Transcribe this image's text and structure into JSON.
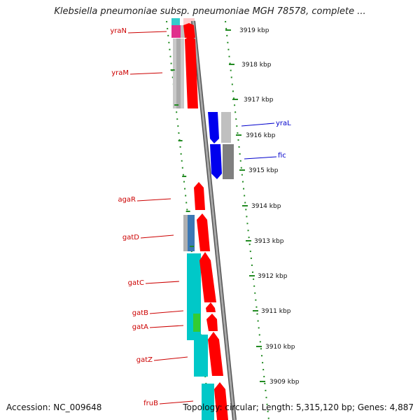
{
  "title": "Klebsiella pneumoniae subsp. pneumoniae MGH 78578, complete ...",
  "footer": {
    "accession": "Accession: NC_009648",
    "summary": "Topology: circular; Length: 5,315,120 bp; Genes: 4,887"
  },
  "colors": {
    "cds": "#ff0000",
    "cds_reverse": "#0000ff",
    "label_forward": "#cc0000",
    "label_reverse": "#0000cc",
    "tick": "#228b22",
    "backbone": "#8c8c8c"
  },
  "scale": {
    "unit": "kbp",
    "ticks": [
      {
        "label": "3919 kbp"
      },
      {
        "label": "3918 kbp"
      },
      {
        "label": "3917 kbp"
      },
      {
        "label": "3916 kbp"
      },
      {
        "label": "3915 kbp"
      },
      {
        "label": "3914 kbp"
      },
      {
        "label": "3913 kbp"
      },
      {
        "label": "3912 kbp"
      },
      {
        "label": "3911 kbp"
      },
      {
        "label": "3910 kbp"
      },
      {
        "label": "3909 kbp"
      }
    ]
  },
  "genes": [
    {
      "name": "yraN",
      "strand": "forward"
    },
    {
      "name": "yraM",
      "strand": "forward"
    },
    {
      "name": "yraL",
      "strand": "reverse"
    },
    {
      "name": "fic",
      "strand": "reverse"
    },
    {
      "name": "agaR",
      "strand": "forward"
    },
    {
      "name": "gatD",
      "strand": "forward"
    },
    {
      "name": "gatC",
      "strand": "forward"
    },
    {
      "name": "gatB",
      "strand": "forward"
    },
    {
      "name": "gatA",
      "strand": "forward"
    },
    {
      "name": "gatZ",
      "strand": "forward"
    },
    {
      "name": "fruB",
      "strand": "forward"
    }
  ]
}
